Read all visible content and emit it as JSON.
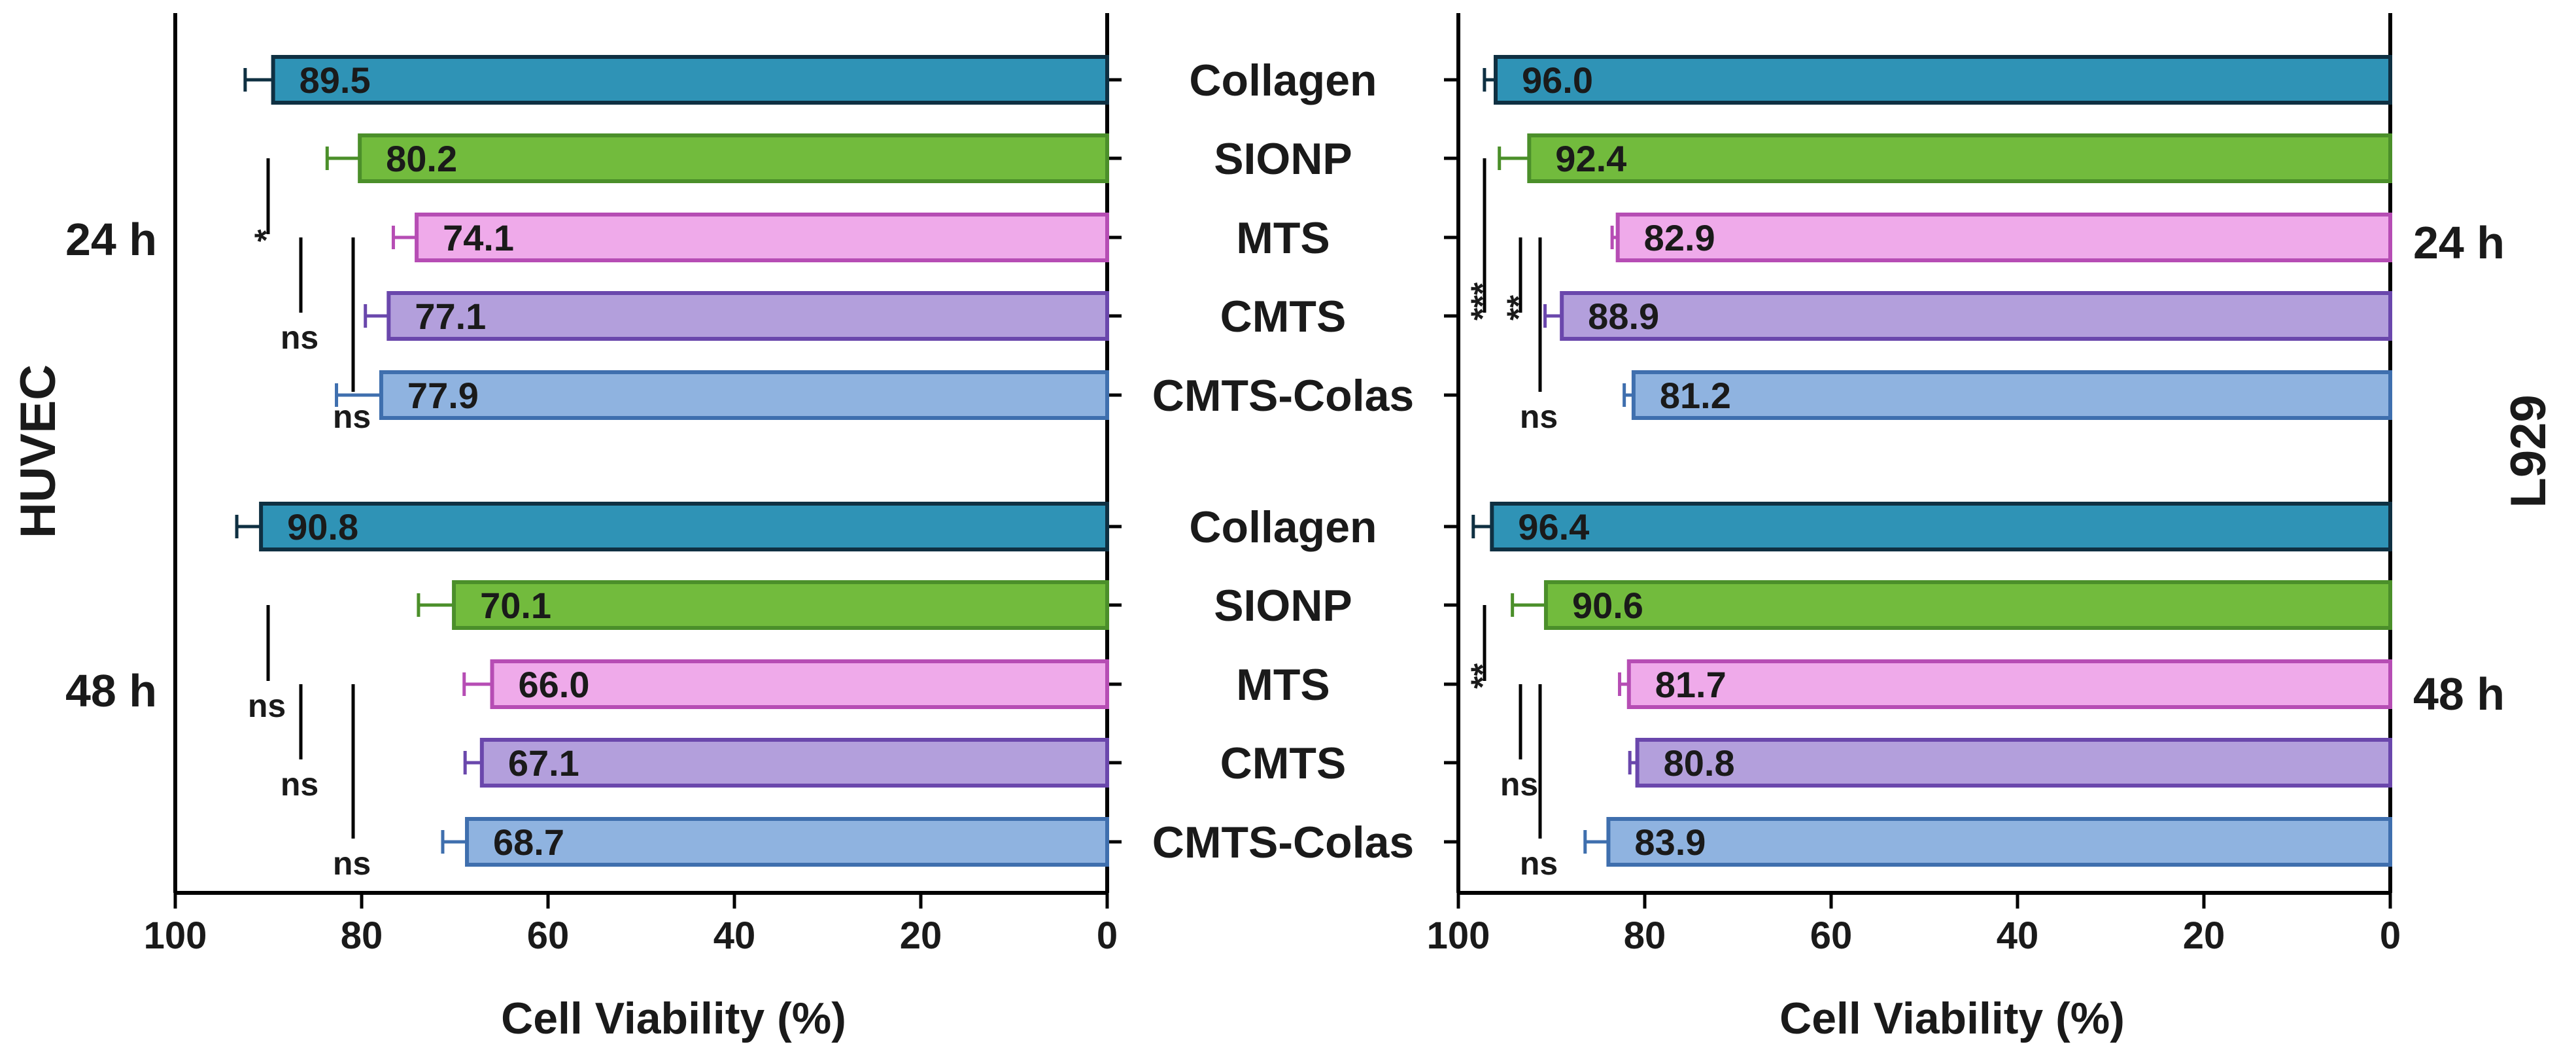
{
  "chart_data": [
    {
      "type": "bar",
      "orientation": "horizontal",
      "cell_line": "HUVEC",
      "xlabel": "Cell Viability (%)",
      "xlim": [
        100,
        0
      ],
      "xticks": [
        "100",
        "80",
        "60",
        "40",
        "20",
        "0"
      ],
      "categories": [
        "Collagen",
        "SIONP",
        "MTS",
        "CMTS",
        "CMTS-Colas"
      ],
      "groups": [
        {
          "time": "24 h",
          "values": [
            89.5,
            80.2,
            74.1,
            77.1,
            77.9
          ],
          "labels": [
            "89.5",
            "80.2",
            "74.1",
            "77.1",
            "77.9"
          ],
          "errors": [
            3.0,
            3.5,
            2.5,
            2.5,
            4.8
          ],
          "significance": [
            {
              "from": "SIONP",
              "to": "MTS",
              "mark": "*"
            },
            {
              "from": "MTS",
              "to": "CMTS",
              "mark": "ns"
            },
            {
              "from": "MTS",
              "to": "CMTS-Colas",
              "mark": "ns"
            }
          ]
        },
        {
          "time": "48 h",
          "values": [
            90.8,
            70.1,
            66.0,
            67.1,
            68.7
          ],
          "labels": [
            "90.8",
            "70.1",
            "66.0",
            "67.1",
            "68.7"
          ],
          "errors": [
            2.6,
            3.8,
            3.0,
            1.8,
            2.6
          ],
          "significance": [
            {
              "from": "SIONP",
              "to": "MTS",
              "mark": "ns"
            },
            {
              "from": "MTS",
              "to": "CMTS",
              "mark": "ns"
            },
            {
              "from": "MTS",
              "to": "CMTS-Colas",
              "mark": "ns"
            }
          ]
        }
      ]
    },
    {
      "type": "bar",
      "orientation": "horizontal",
      "cell_line": "L929",
      "xlabel": "Cell Viability (%)",
      "xlim": [
        100,
        0
      ],
      "xticks": [
        "100",
        "80",
        "60",
        "40",
        "20",
        "0"
      ],
      "categories": [
        "Collagen",
        "SIONP",
        "MTS",
        "CMTS",
        "CMTS-Colas"
      ],
      "groups": [
        {
          "time": "24 h",
          "values": [
            96.0,
            92.4,
            82.9,
            88.9,
            81.2
          ],
          "labels": [
            "96.0",
            "92.4",
            "82.9",
            "88.9",
            "81.2"
          ],
          "errors": [
            1.2,
            3.2,
            0.6,
            1.8,
            1.0
          ],
          "significance": [
            {
              "from": "SIONP",
              "to": "CMTS",
              "mark": "***"
            },
            {
              "from": "MTS",
              "to": "CMTS",
              "mark": "**"
            },
            {
              "from": "MTS",
              "to": "CMTS-Colas",
              "mark": "ns"
            }
          ]
        },
        {
          "time": "48 h",
          "values": [
            96.4,
            90.6,
            81.7,
            80.8,
            83.9
          ],
          "labels": [
            "96.4",
            "90.6",
            "81.7",
            "80.8",
            "83.9"
          ],
          "errors": [
            2.0,
            3.6,
            1.0,
            0.8,
            2.5
          ],
          "significance": [
            {
              "from": "SIONP",
              "to": "MTS",
              "mark": "**"
            },
            {
              "from": "MTS",
              "to": "CMTS",
              "mark": "ns"
            },
            {
              "from": "MTS",
              "to": "CMTS-Colas",
              "mark": "ns"
            }
          ]
        }
      ]
    }
  ],
  "colors": {
    "Collagen": {
      "fill": "#2f93b6",
      "stroke": "#0f3042"
    },
    "SIONP": {
      "fill": "#72bb3d",
      "stroke": "#4b8f2a"
    },
    "MTS": {
      "fill": "#efaaea",
      "stroke": "#b64db4"
    },
    "CMTS": {
      "fill": "#b39fdc",
      "stroke": "#6a47ac"
    },
    "CMTS-Colas": {
      "fill": "#8fb3e0",
      "stroke": "#3f6fae"
    },
    "axis": "#000000",
    "text": "#1a1a1a"
  }
}
